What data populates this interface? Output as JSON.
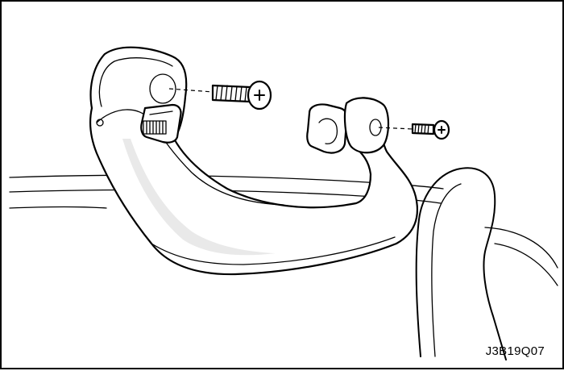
{
  "figure": {
    "code": "J3B19Q07",
    "parts": [
      "assist-grip-handle",
      "front-mounting-screw",
      "rear-mounting-screw",
      "screw-cover-cap",
      "roof-trim",
      "door-frame"
    ]
  }
}
